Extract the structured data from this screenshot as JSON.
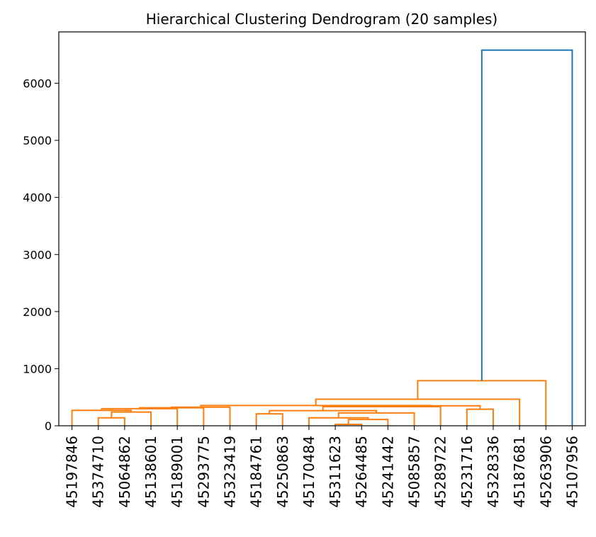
{
  "chart_data": {
    "type": "dendrogram",
    "title": "Hierarchical Clustering Dendrogram (20 samples)",
    "xlabel": "",
    "ylabel": "",
    "ylim": [
      0,
      6900
    ],
    "yticks": [
      0,
      1000,
      2000,
      3000,
      4000,
      5000,
      6000
    ],
    "grid": false,
    "leaves": [
      "45197846",
      "45374710",
      "45064862",
      "45138601",
      "45189001",
      "45293775",
      "45323419",
      "45184761",
      "45250863",
      "45170484",
      "45311623",
      "45264485",
      "45241442",
      "45085857",
      "45289722",
      "45231716",
      "45328336",
      "45187681",
      "45263906",
      "45107956"
    ],
    "colors": {
      "cluster": "#ff7f0e",
      "above_threshold": "#1f77b4"
    },
    "merges": [
      {
        "left": "L10",
        "right": "L11",
        "height": 25,
        "color": "cluster"
      },
      {
        "left": "M0",
        "right": "L12",
        "height": 110,
        "color": "cluster"
      },
      {
        "left": "L9",
        "right": "M1",
        "height": 140,
        "color": "cluster"
      },
      {
        "left": "L1",
        "right": "L2",
        "height": 140,
        "color": "cluster"
      },
      {
        "left": "L7",
        "right": "L8",
        "height": 210,
        "color": "cluster"
      },
      {
        "left": "M2",
        "right": "L13",
        "height": 225,
        "color": "cluster"
      },
      {
        "left": "M3",
        "right": "L3",
        "height": 240,
        "color": "cluster"
      },
      {
        "left": "M4",
        "right": "M5",
        "height": 265,
        "color": "cluster"
      },
      {
        "left": "L0",
        "right": "M6",
        "height": 270,
        "color": "cluster"
      },
      {
        "left": "L15",
        "right": "L16",
        "height": 290,
        "color": "cluster"
      },
      {
        "left": "M8",
        "right": "L4",
        "height": 300,
        "color": "cluster"
      },
      {
        "left": "M10",
        "right": "L5",
        "height": 315,
        "color": "cluster"
      },
      {
        "left": "M11",
        "right": "L6",
        "height": 325,
        "color": "cluster"
      },
      {
        "left": "M7",
        "right": "L14",
        "height": 335,
        "color": "cluster"
      },
      {
        "left": "M13",
        "right": "M9",
        "height": 350,
        "color": "cluster"
      },
      {
        "left": "M12",
        "right": "M14",
        "height": 355,
        "color": "cluster"
      },
      {
        "left": "M15",
        "right": "L17",
        "height": 465,
        "color": "cluster"
      },
      {
        "left": "M16",
        "right": "L18",
        "height": 790,
        "color": "cluster"
      },
      {
        "left": "M17",
        "right": "L19",
        "height": 6580,
        "color": "above_threshold"
      }
    ]
  }
}
